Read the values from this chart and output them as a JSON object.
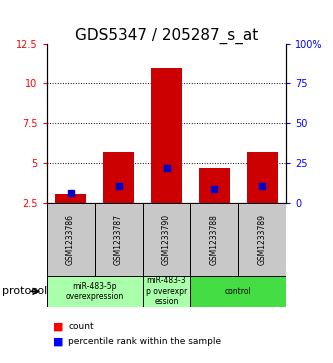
{
  "title": "GDS5347 / 205287_s_at",
  "samples": [
    "GSM1233786",
    "GSM1233787",
    "GSM1233790",
    "GSM1233788",
    "GSM1233789"
  ],
  "red_values": [
    3.1,
    5.7,
    11.0,
    4.7,
    5.7
  ],
  "blue_values": [
    3.15,
    3.6,
    4.72,
    3.4,
    3.6
  ],
  "ylim_left": [
    2.5,
    12.5
  ],
  "ylim_right": [
    0,
    100
  ],
  "yticks_left": [
    2.5,
    5.0,
    7.5,
    10.0,
    12.5
  ],
  "yticks_right": [
    0,
    25,
    50,
    75,
    100
  ],
  "ytick_labels_left": [
    "2.5",
    "5",
    "7.5",
    "10",
    "12.5"
  ],
  "ytick_labels_right": [
    "0",
    "25",
    "50",
    "75",
    "100%"
  ],
  "bar_color": "#CC0000",
  "blue_color": "#0000CC",
  "baseline": 2.5,
  "bar_width": 0.65,
  "sample_box_color": "#C8C8C8",
  "protocol_label": "protocol",
  "legend_red": "count",
  "legend_blue": "percentile rank within the sample",
  "title_fontsize": 11,
  "tick_fontsize": 7,
  "groups": [
    {
      "samples": [
        0,
        1
      ],
      "label": "miR-483-5p\noverexpression",
      "color": "#AAFFAA"
    },
    {
      "samples": [
        2
      ],
      "label": "miR-483-3\np overexpr\nession",
      "color": "#AAFFAA"
    },
    {
      "samples": [
        3,
        4
      ],
      "label": "control",
      "color": "#44DD44"
    }
  ]
}
